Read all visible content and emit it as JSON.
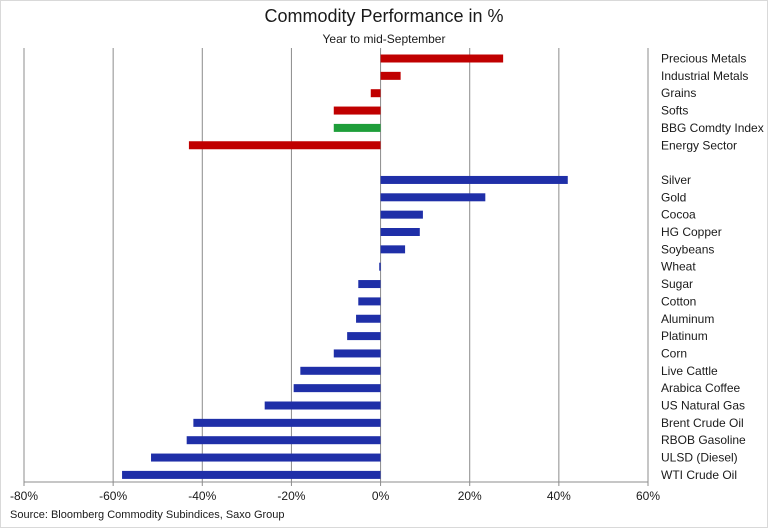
{
  "chart_data": {
    "type": "bar",
    "orientation": "horizontal",
    "title": "Commodity Performance in %",
    "subtitle": "Year to mid-September",
    "source": "Source: Bloomberg Commodity Subindices, Saxo Group",
    "xlim": [
      -80,
      60
    ],
    "x_ticks": [
      "-80%",
      "-60%",
      "-40%",
      "-20%",
      "0%",
      "20%",
      "40%",
      "60%"
    ],
    "grid": "vertical",
    "category_labels_position": "right",
    "colors": {
      "sector": "#c00000",
      "index": "#1e9e3a",
      "commodity": "#1f2fa8",
      "grid": "#8c8c8c"
    },
    "groups": [
      {
        "name": "",
        "items": [
          {
            "label": "Precious Metals",
            "value": 27.5,
            "kind": "sector"
          },
          {
            "label": "Industrial Metals",
            "value": 4.5,
            "kind": "sector"
          },
          {
            "label": "Grains",
            "value": -2.2,
            "kind": "sector"
          },
          {
            "label": "Softs",
            "value": -10.5,
            "kind": "sector"
          },
          {
            "label": "BBG Comdty Index",
            "value": -10.5,
            "kind": "index"
          },
          {
            "label": "Energy Sector",
            "value": -43,
            "kind": "sector"
          }
        ]
      },
      {
        "name": "",
        "items": [
          {
            "label": "Silver",
            "value": 42,
            "kind": "commodity"
          },
          {
            "label": "Gold",
            "value": 23.5,
            "kind": "commodity"
          },
          {
            "label": "Cocoa",
            "value": 9.5,
            "kind": "commodity"
          },
          {
            "label": "HG Copper",
            "value": 8.8,
            "kind": "commodity"
          },
          {
            "label": "Soybeans",
            "value": 5.5,
            "kind": "commodity"
          },
          {
            "label": "Wheat",
            "value": -0.3,
            "kind": "commodity"
          },
          {
            "label": "Sugar",
            "value": -5,
            "kind": "commodity"
          },
          {
            "label": "Cotton",
            "value": -5,
            "kind": "commodity"
          },
          {
            "label": "Aluminum",
            "value": -5.5,
            "kind": "commodity"
          },
          {
            "label": "Platinum",
            "value": -7.5,
            "kind": "commodity"
          },
          {
            "label": "Corn",
            "value": -10.5,
            "kind": "commodity"
          },
          {
            "label": "Live Cattle",
            "value": -18,
            "kind": "commodity"
          },
          {
            "label": "Arabica Coffee",
            "value": -19.5,
            "kind": "commodity"
          },
          {
            "label": "US Natural Gas",
            "value": -26,
            "kind": "commodity"
          },
          {
            "label": "Brent Crude Oil",
            "value": -42,
            "kind": "commodity"
          },
          {
            "label": "RBOB Gasoline",
            "value": -43.5,
            "kind": "commodity"
          },
          {
            "label": "ULSD (Diesel)",
            "value": -51.5,
            "kind": "commodity"
          },
          {
            "label": "WTI Crude Oil",
            "value": -58,
            "kind": "commodity"
          }
        ]
      }
    ]
  }
}
